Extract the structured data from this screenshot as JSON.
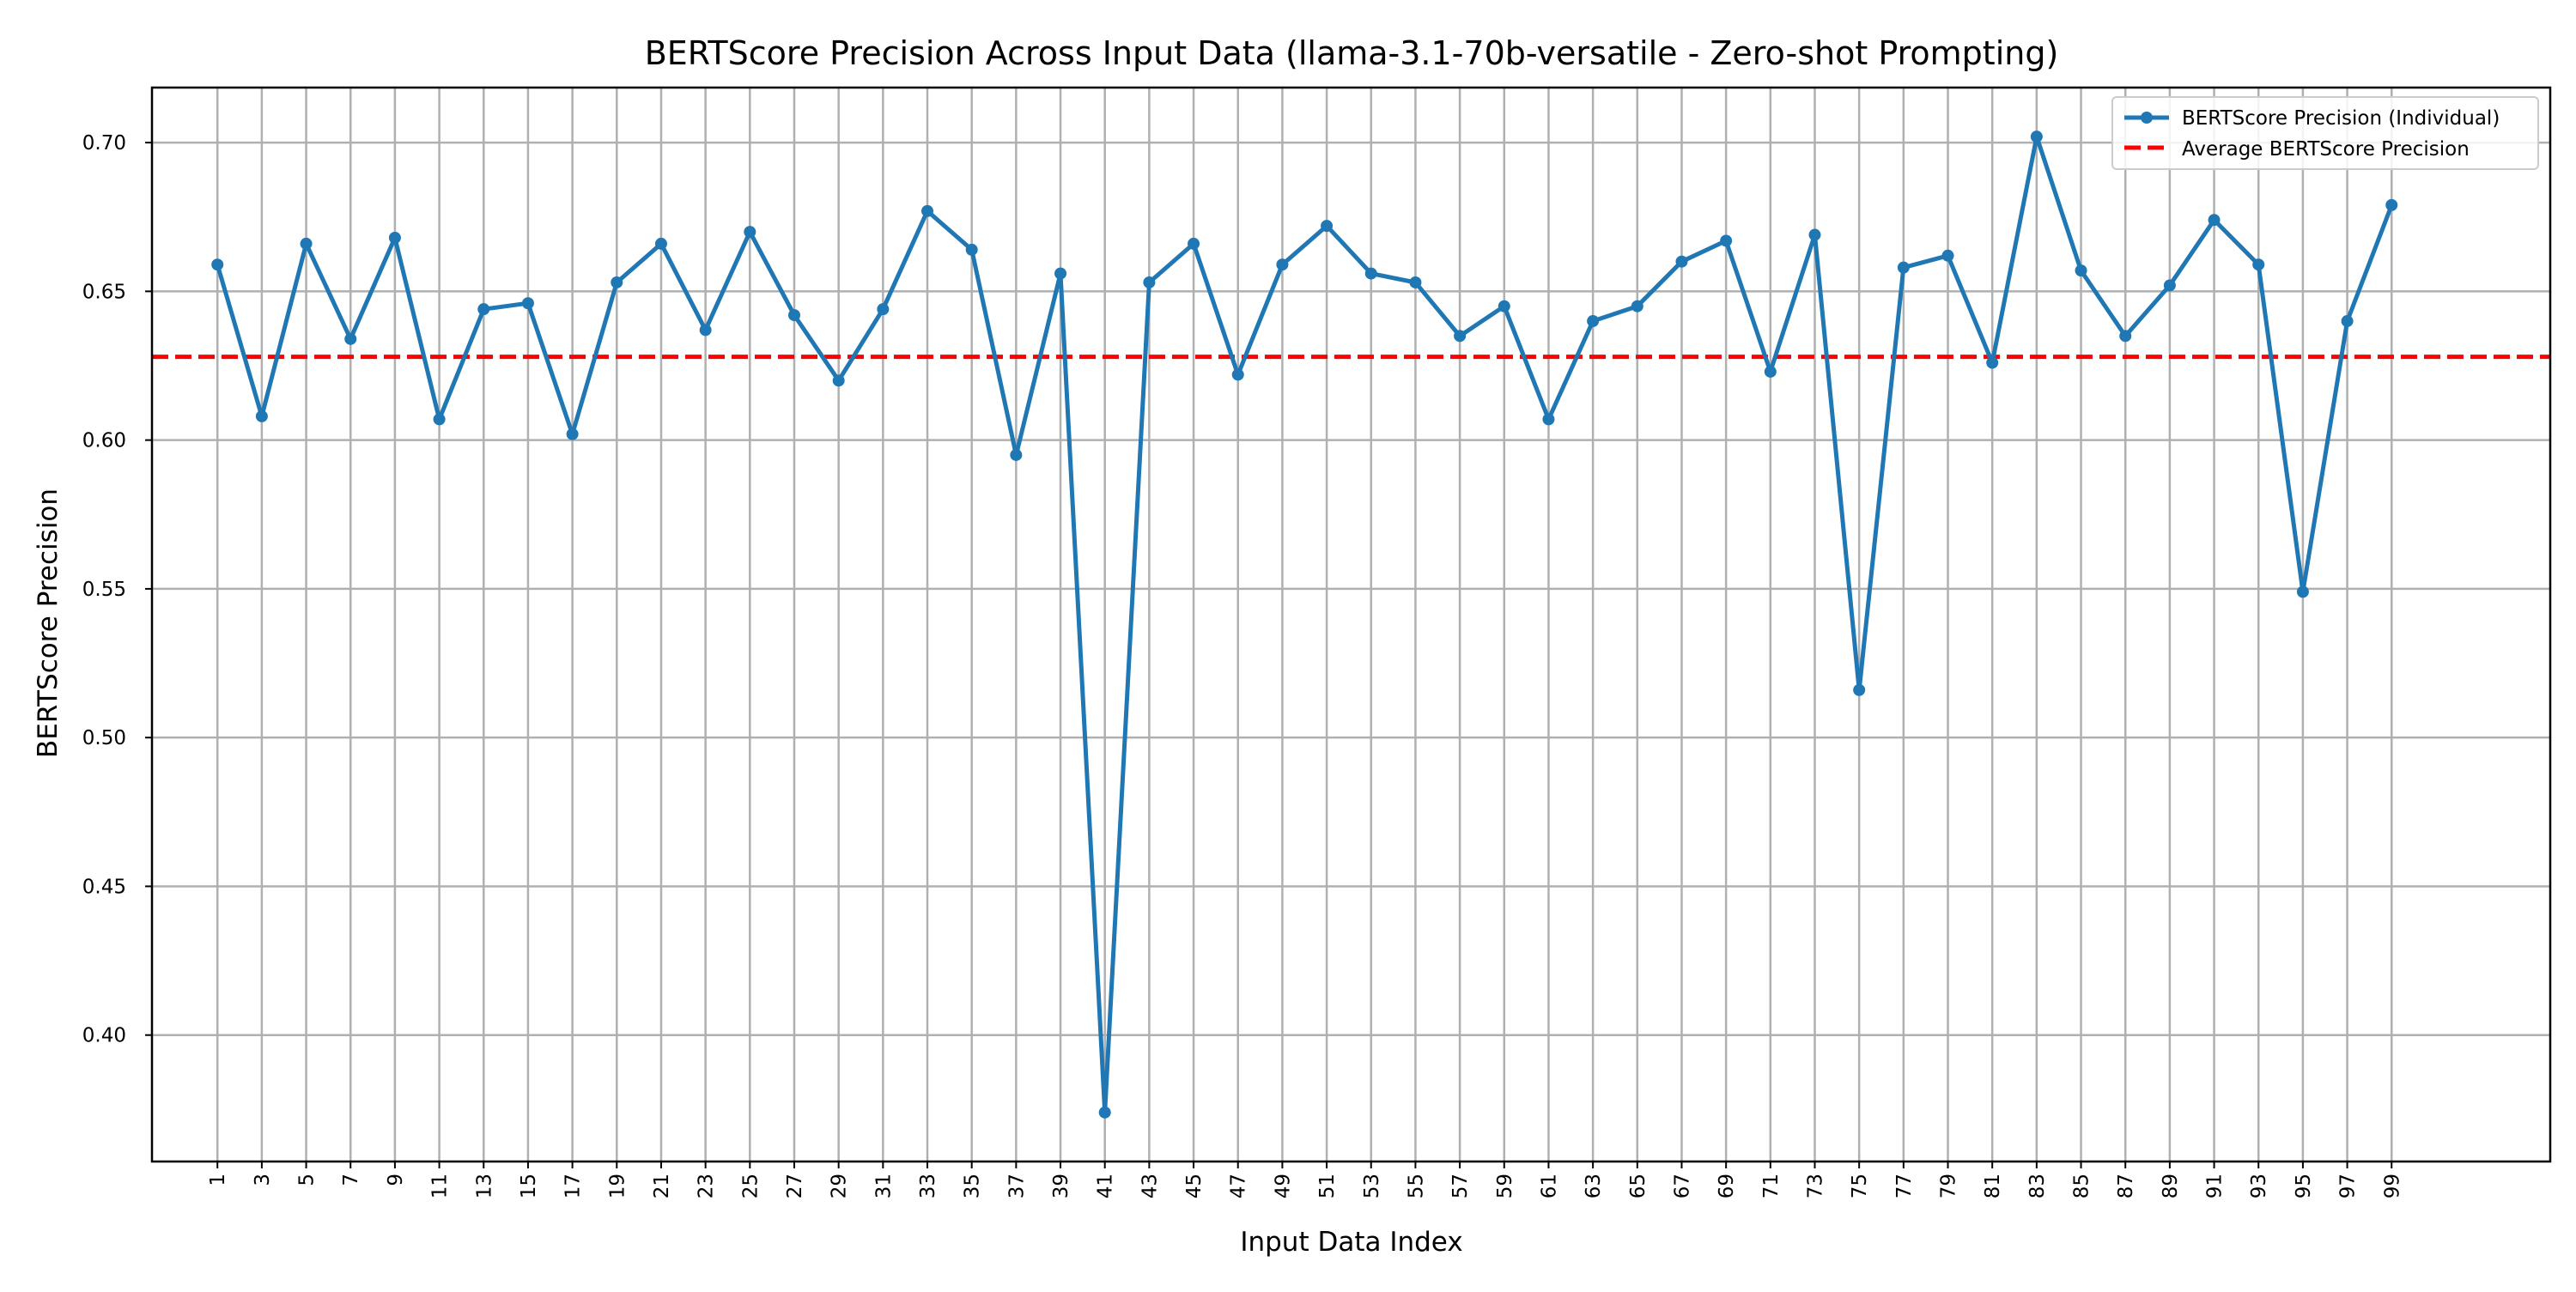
{
  "chart_data": {
    "type": "line",
    "title": "BERTScore Precision Across Input Data (llama-3.1-70b-versatile - Zero-shot Prompting)",
    "xlabel": "Input Data Index",
    "ylabel": "BERTScore Precision",
    "xlim": [
      -1.95,
      106.15
    ],
    "ylim": [
      0.3575,
      0.7185
    ],
    "x_ticks": [
      1,
      3,
      5,
      7,
      9,
      11,
      13,
      15,
      17,
      19,
      21,
      23,
      25,
      27,
      29,
      31,
      33,
      35,
      37,
      39,
      41,
      43,
      45,
      47,
      49,
      51,
      53,
      55,
      57,
      59,
      61,
      63,
      65,
      67,
      69,
      71,
      73,
      75,
      77,
      79,
      81,
      83,
      85,
      87,
      89,
      91,
      93,
      95,
      97,
      99
    ],
    "y_ticks": [
      0.4,
      0.45,
      0.5,
      0.55,
      0.6,
      0.65,
      0.7
    ],
    "y_tick_labels": [
      "0.40",
      "0.45",
      "0.50",
      "0.55",
      "0.60",
      "0.65",
      "0.70"
    ],
    "grid": true,
    "legend_position": "top-right",
    "series": [
      {
        "name": "BERTScore Precision (Individual)",
        "color": "#1f77b4",
        "style": "solid-line-with-markers",
        "x": [
          1,
          3,
          5,
          7,
          9,
          11,
          13,
          15,
          17,
          19,
          21,
          23,
          25,
          27,
          29,
          31,
          33,
          35,
          37,
          39,
          41,
          43,
          45,
          47,
          49,
          51,
          53,
          55,
          57,
          59,
          61,
          63,
          65,
          67,
          69,
          71,
          73,
          75,
          77,
          79,
          81,
          83,
          85,
          87,
          89,
          91,
          93,
          95,
          97,
          99
        ],
        "values": [
          0.659,
          0.608,
          0.666,
          0.634,
          0.668,
          0.607,
          0.644,
          0.646,
          0.602,
          0.653,
          0.666,
          0.637,
          0.67,
          0.642,
          0.62,
          0.644,
          0.677,
          0.664,
          0.595,
          0.656,
          0.374,
          0.653,
          0.666,
          0.622,
          0.659,
          0.672,
          0.656,
          0.653,
          0.635,
          0.645,
          0.607,
          0.64,
          0.645,
          0.66,
          0.667,
          0.623,
          0.669,
          0.516,
          0.658,
          0.662,
          0.626,
          0.702,
          0.657,
          0.635,
          0.652,
          0.674,
          0.659,
          0.549,
          0.64,
          0.679
        ]
      },
      {
        "name": "Average BERTScore Precision",
        "color": "#ff0000",
        "style": "dashed",
        "value": 0.628
      }
    ]
  }
}
